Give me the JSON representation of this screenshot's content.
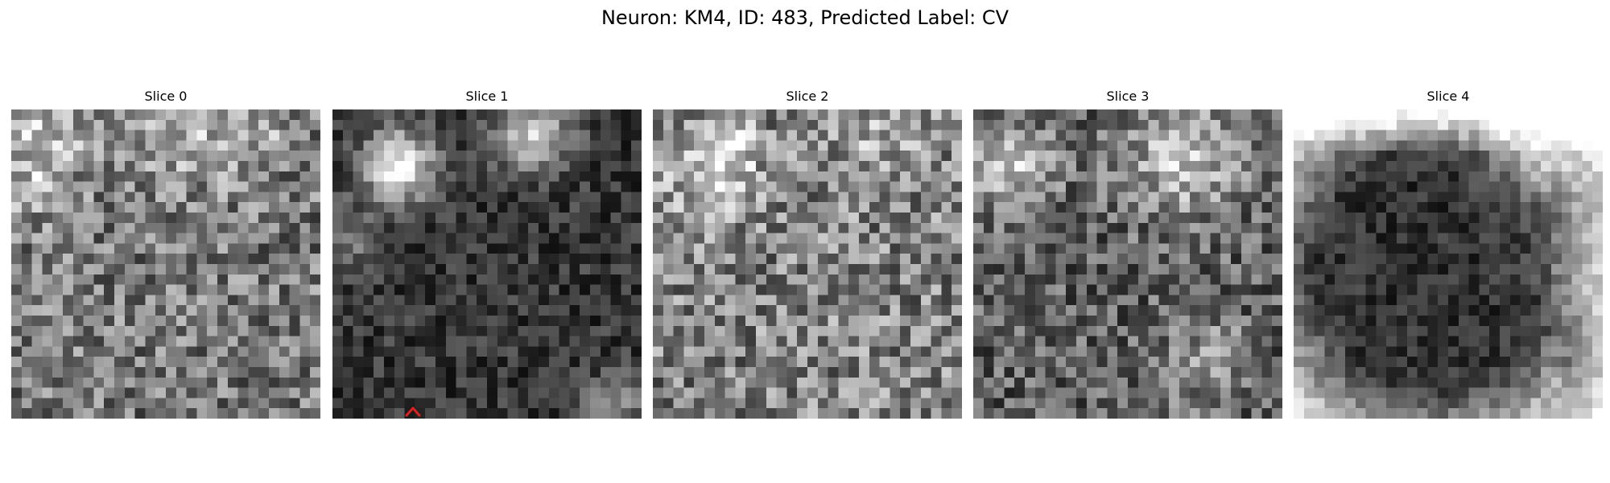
{
  "title": "Neuron: KM4, ID: 483, Predicted Label: CV",
  "panels": [
    {
      "label": "Slice 0",
      "tone": "medium-bright",
      "highlights": "bright blobs top-left and top-right"
    },
    {
      "label": "Slice 1",
      "tone": "dark",
      "highlights": "bright spot top-left, bright patch top-right",
      "has_marker": true
    },
    {
      "label": "Slice 2",
      "tone": "medium-bright",
      "highlights": "bright patch top-left"
    },
    {
      "label": "Slice 3",
      "tone": "medium",
      "highlights": "bright regions top-left and top-right"
    },
    {
      "label": "Slice 4",
      "tone": "dark center with bright ring",
      "highlights": "bright band along top and right edge"
    }
  ],
  "marker_color": "#e02020",
  "colormap": "grayscale"
}
